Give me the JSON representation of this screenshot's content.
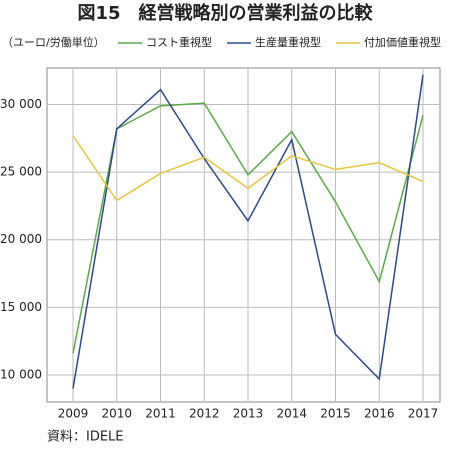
{
  "chart_data": {
    "type": "line",
    "title": "図15　経営戦略別の営業利益の比較",
    "y_label": "（ユーロ/労働単位）",
    "source": "資料：IDELE",
    "categories": [
      "2009",
      "2010",
      "2011",
      "2012",
      "2013",
      "2014",
      "2015",
      "2016",
      "2017"
    ],
    "series": [
      {
        "name": "コスト重視型",
        "color": "#5aaa46",
        "values": [
          11600,
          28200,
          29900,
          30100,
          24800,
          28000,
          22800,
          16900,
          29200
        ]
      },
      {
        "name": "生産量重視型",
        "color": "#2c4a8a",
        "values": [
          9000,
          28200,
          31100,
          26000,
          21400,
          27400,
          13000,
          9700,
          32200
        ]
      },
      {
        "name": "付加価値重視型",
        "color": "#e8c43a",
        "values": [
          27700,
          22900,
          24900,
          26100,
          23800,
          26200,
          25200,
          25700,
          24300
        ]
      }
    ],
    "ylim": [
      8000,
      32700
    ],
    "yticks": [
      {
        "value": 10000,
        "label": "10 000"
      },
      {
        "value": 15000,
        "label": "15 000"
      },
      {
        "value": 20000,
        "label": "20 000"
      },
      {
        "value": 25000,
        "label": "25 000"
      },
      {
        "value": 30000,
        "label": "30 000"
      }
    ],
    "grid": true
  }
}
